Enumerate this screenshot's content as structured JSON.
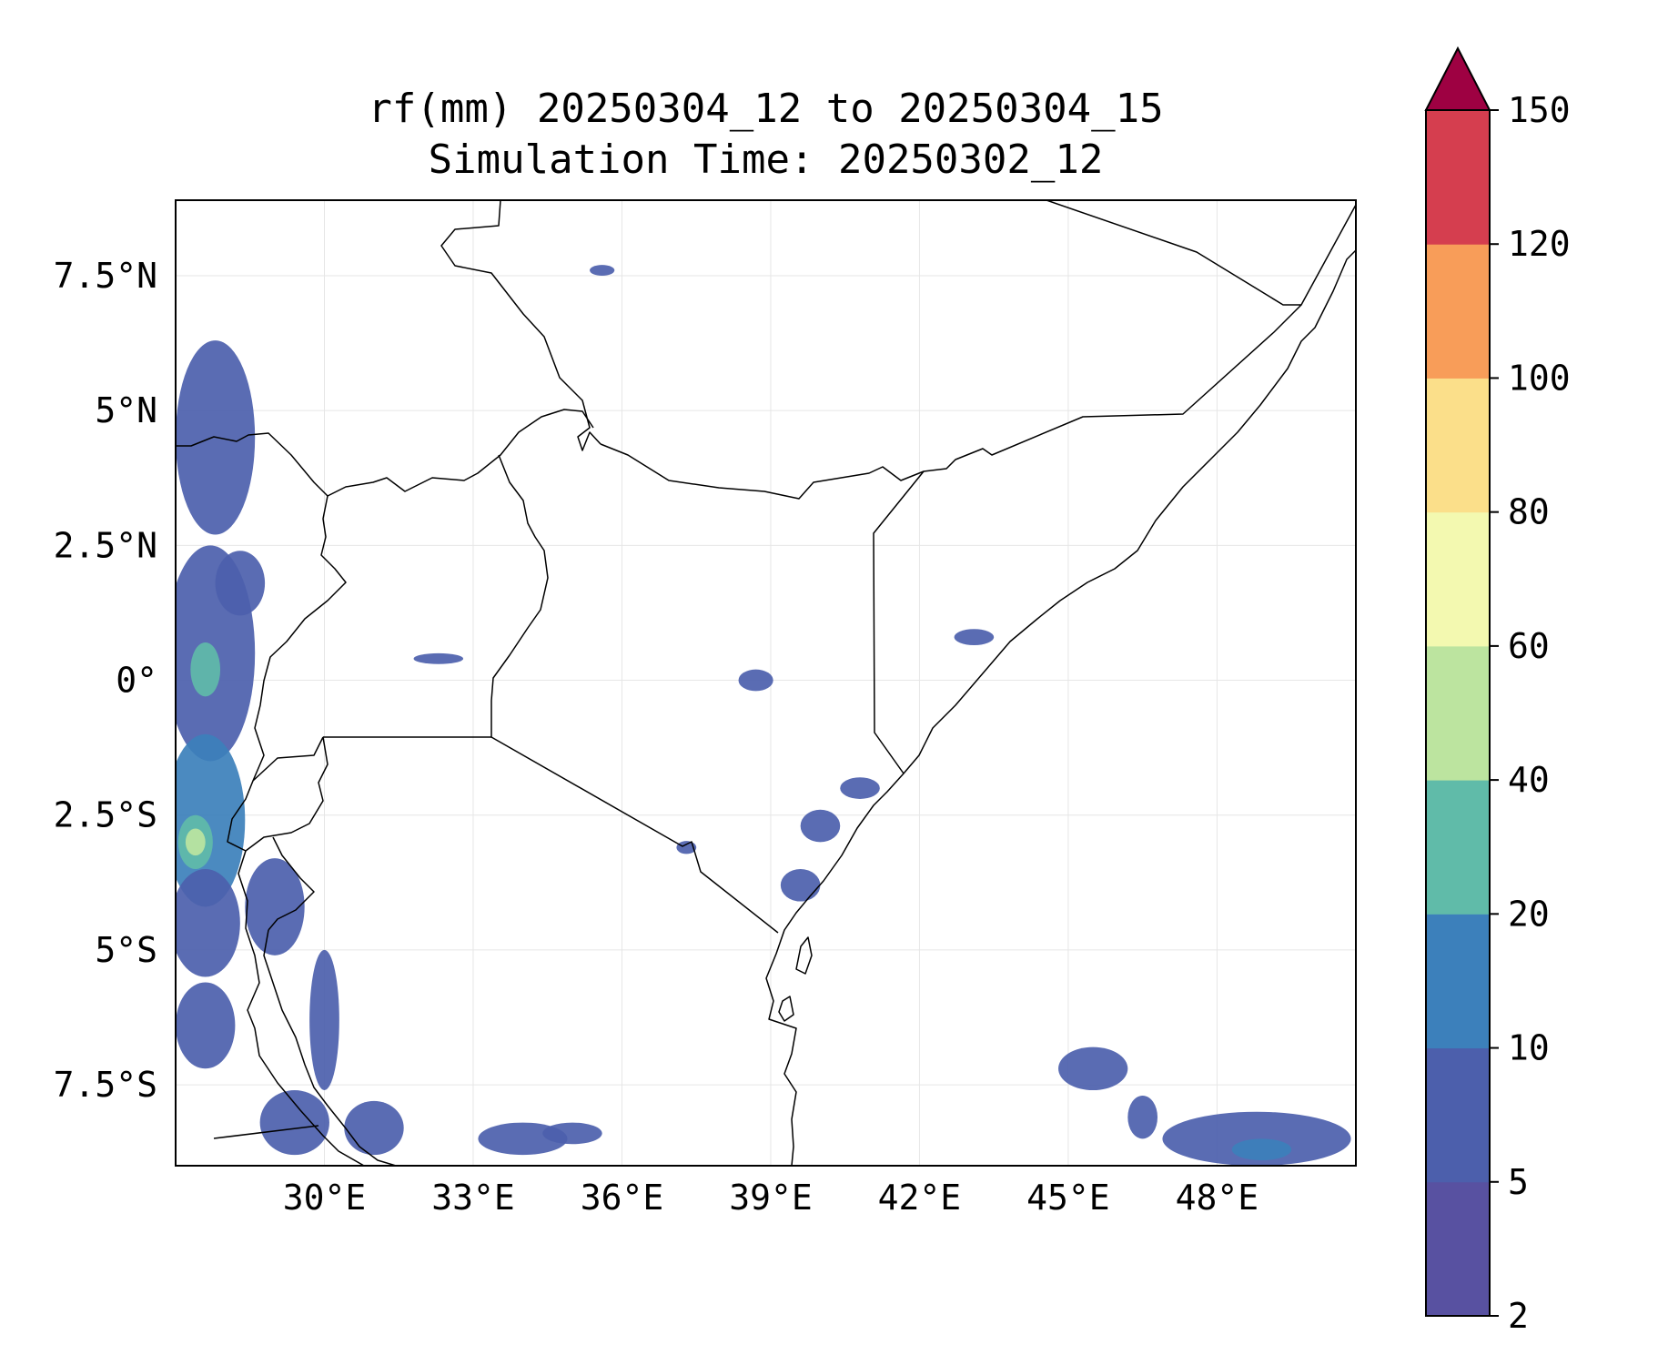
{
  "title": {
    "line1": "rf(mm) 20250304_12 to 20250304_15",
    "line2": "Simulation Time: 20250302_12"
  },
  "map": {
    "lon_range": [
      27.0,
      50.8
    ],
    "lat_range": [
      -9.0,
      8.9
    ],
    "x_ticks": [
      {
        "lon": 30,
        "label": "30°E"
      },
      {
        "lon": 33,
        "label": "33°E"
      },
      {
        "lon": 36,
        "label": "36°E"
      },
      {
        "lon": 39,
        "label": "39°E"
      },
      {
        "lon": 42,
        "label": "42°E"
      },
      {
        "lon": 45,
        "label": "45°E"
      },
      {
        "lon": 48,
        "label": "48°E"
      }
    ],
    "y_ticks": [
      {
        "lat": 7.5,
        "label": "7.5°N"
      },
      {
        "lat": 5,
        "label": "5°N"
      },
      {
        "lat": 2.5,
        "label": "2.5°N"
      },
      {
        "lat": 0,
        "label": "0°"
      },
      {
        "lat": -2.5,
        "label": "2.5°S"
      },
      {
        "lat": -5,
        "label": "5°S"
      },
      {
        "lat": -7.5,
        "label": "7.5°S"
      }
    ],
    "gridlines": true,
    "border_color": "#000000",
    "grid_color": "#e6e6e6"
  },
  "colorbar": {
    "levels": [
      2,
      5,
      10,
      20,
      40,
      60,
      80,
      100,
      120,
      150
    ],
    "tick_labels": [
      "2",
      "5",
      "10",
      "20",
      "40",
      "60",
      "80",
      "100",
      "120",
      "150"
    ],
    "colors": [
      "#5851a1",
      "#4c5fac",
      "#3c80bb",
      "#60bba9",
      "#bce49f",
      "#f3f9b0",
      "#fbdf8a",
      "#f89d59",
      "#d53e4f"
    ],
    "extend_color": "#9e0142",
    "extend": "max"
  },
  "chart_data": {
    "type": "heatmap",
    "title": "rf(mm) 20250304_12 to 20250304_15\nSimulation Time: 20250302_12",
    "variable": "rf(mm)",
    "period_start": "20250304_12",
    "period_end": "20250304_15",
    "simulation_time": "20250302_12",
    "xlim": [
      27.0,
      50.8
    ],
    "ylim": [
      -9.0,
      8.9
    ],
    "levels": [
      2,
      5,
      10,
      20,
      40,
      60,
      80,
      100,
      120,
      150
    ],
    "rain_regions": [
      {
        "lon": 27.8,
        "lat": 4.5,
        "rx": 0.8,
        "ry": 1.8,
        "level": 5
      },
      {
        "lon": 27.7,
        "lat": 0.5,
        "rx": 0.9,
        "ry": 2.0,
        "level": 5
      },
      {
        "lon": 27.6,
        "lat": 0.2,
        "rx": 0.3,
        "ry": 0.5,
        "level": 20
      },
      {
        "lon": 27.6,
        "lat": -2.6,
        "rx": 0.8,
        "ry": 1.6,
        "level": 10
      },
      {
        "lon": 27.4,
        "lat": -3.0,
        "rx": 0.35,
        "ry": 0.5,
        "level": 20
      },
      {
        "lon": 27.4,
        "lat": -3.0,
        "rx": 0.2,
        "ry": 0.25,
        "level": 40
      },
      {
        "lon": 27.6,
        "lat": -4.5,
        "rx": 0.7,
        "ry": 1.0,
        "level": 5
      },
      {
        "lon": 29.0,
        "lat": -4.2,
        "rx": 0.6,
        "ry": 0.9,
        "level": 5
      },
      {
        "lon": 30.0,
        "lat": -6.3,
        "rx": 0.3,
        "ry": 1.3,
        "level": 5
      },
      {
        "lon": 31.0,
        "lat": -8.3,
        "rx": 0.6,
        "ry": 0.5,
        "level": 5
      },
      {
        "lon": 29.4,
        "lat": -8.2,
        "rx": 0.7,
        "ry": 0.6,
        "level": 5
      },
      {
        "lon": 27.6,
        "lat": -6.4,
        "rx": 0.6,
        "ry": 0.8,
        "level": 5
      },
      {
        "lon": 28.3,
        "lat": 1.8,
        "rx": 0.5,
        "ry": 0.6,
        "level": 5
      },
      {
        "lon": 34.0,
        "lat": -8.5,
        "rx": 0.9,
        "ry": 0.3,
        "level": 5
      },
      {
        "lon": 35.0,
        "lat": -8.4,
        "rx": 0.6,
        "ry": 0.2,
        "level": 5
      },
      {
        "lon": 38.7,
        "lat": 0.0,
        "rx": 0.35,
        "ry": 0.2,
        "level": 5
      },
      {
        "lon": 43.1,
        "lat": 0.8,
        "rx": 0.4,
        "ry": 0.15,
        "level": 5
      },
      {
        "lon": 48.8,
        "lat": -8.5,
        "rx": 1.9,
        "ry": 0.5,
        "level": 5
      },
      {
        "lon": 48.9,
        "lat": -8.7,
        "rx": 0.6,
        "ry": 0.2,
        "level": 10
      },
      {
        "lon": 45.5,
        "lat": -7.2,
        "rx": 0.7,
        "ry": 0.4,
        "level": 5
      },
      {
        "lon": 46.5,
        "lat": -8.1,
        "rx": 0.3,
        "ry": 0.4,
        "level": 5
      },
      {
        "lon": 40.8,
        "lat": -2.0,
        "rx": 0.4,
        "ry": 0.2,
        "level": 5
      },
      {
        "lon": 40.0,
        "lat": -2.7,
        "rx": 0.4,
        "ry": 0.3,
        "level": 5
      },
      {
        "lon": 39.6,
        "lat": -3.8,
        "rx": 0.4,
        "ry": 0.3,
        "level": 5
      },
      {
        "lon": 37.3,
        "lat": -3.1,
        "rx": 0.2,
        "ry": 0.12,
        "level": 5
      },
      {
        "lon": 32.3,
        "lat": 0.4,
        "rx": 0.5,
        "ry": 0.1,
        "level": 5
      },
      {
        "lon": 35.6,
        "lat": 7.6,
        "rx": 0.25,
        "ry": 0.1,
        "level": 5
      }
    ]
  }
}
